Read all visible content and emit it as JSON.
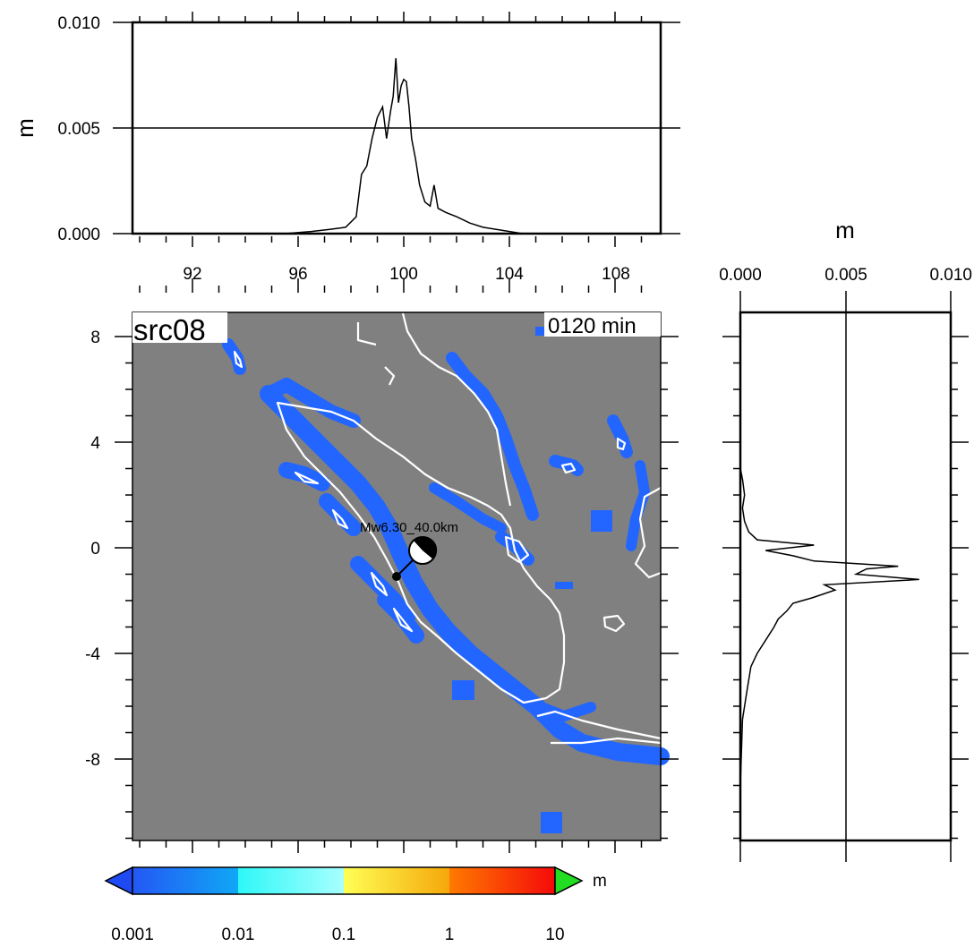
{
  "top_panel": {
    "ylabel": "m",
    "yticks": [
      "0.010",
      "0.005",
      "0.000"
    ],
    "xticks": [
      "92",
      "96",
      "100",
      "104",
      "108"
    ]
  },
  "side_panel": {
    "xlabel": "m",
    "xticks": [
      "0.000",
      "0.005",
      "0.010"
    ]
  },
  "map": {
    "source_label": "src08",
    "time_label": "0120 min",
    "event_label": "Mw6.30_40.0km",
    "yticks": [
      "8",
      "4",
      "0",
      "-4",
      "-8"
    ],
    "ocean_color": "#808080",
    "wave_color": "#2266ff",
    "coast_color": "#ffffff",
    "epicenter": {
      "lon": 99.6,
      "lat": -1.1
    },
    "beachball": {
      "lon": 100.7,
      "lat": -0.1
    }
  },
  "colorbar": {
    "unit": "m",
    "labels": [
      "0.001",
      "0.01",
      "0.1",
      "1",
      "10"
    ],
    "colors": {
      "under": "#1f49f2",
      "c1_start": "#2457f5",
      "c1_end": "#10a8f5",
      "c2_start": "#2ef7f7",
      "c2_end": "#a8ffff",
      "c3_start": "#ffff55",
      "c3_end": "#f5a80a",
      "c4_start": "#ff7a00",
      "c4_end": "#f50a0a",
      "over": "#22dd22"
    }
  },
  "chart_data": [
    {
      "type": "line",
      "title": "",
      "xlabel": "",
      "ylabel": "m",
      "xlim": [
        90,
        109.8
      ],
      "ylim": [
        0,
        0.01
      ],
      "grid": "horizontal line at 0.005",
      "x": [
        90,
        95.5,
        96.5,
        97.2,
        97.8,
        98.2,
        98.4,
        98.6,
        98.8,
        99.0,
        99.2,
        99.35,
        99.5,
        99.6,
        99.7,
        99.8,
        99.9,
        100.0,
        100.1,
        100.2,
        100.3,
        100.45,
        100.6,
        100.8,
        101.0,
        101.15,
        101.3,
        101.6,
        102.0,
        102.5,
        103.0,
        103.5,
        104.0,
        104.5,
        105.0,
        109.8
      ],
      "y": [
        0,
        0.0,
        0.0001,
        0.0002,
        0.0003,
        0.0008,
        0.0028,
        0.0032,
        0.0045,
        0.0055,
        0.006,
        0.0045,
        0.0058,
        0.0065,
        0.0083,
        0.0062,
        0.007,
        0.0073,
        0.0072,
        0.006,
        0.0045,
        0.0035,
        0.0023,
        0.0015,
        0.0013,
        0.0023,
        0.0012,
        0.001,
        0.0008,
        0.0005,
        0.0003,
        0.0002,
        0.0001,
        0.0,
        0.0,
        0
      ]
    },
    {
      "type": "line",
      "title": "",
      "xlabel": "m",
      "ylabel": "",
      "xlim": [
        0,
        0.01
      ],
      "ylim": [
        -11,
        9
      ],
      "grid": "vertical line at 0.005",
      "lat": [
        -9.0,
        -6.5,
        -5.5,
        -4.5,
        -4.0,
        -3.5,
        -3.0,
        -2.7,
        -2.4,
        -2.1,
        -1.9,
        -1.6,
        -1.4,
        -1.2,
        -1.0,
        -0.8,
        -0.7,
        -0.5,
        -0.3,
        -0.1,
        0.1,
        0.3,
        0.6,
        1.0,
        1.5,
        2.0,
        2.6,
        3.0,
        9.0
      ],
      "y": [
        0,
        0.0001,
        0.0003,
        0.0005,
        0.0008,
        0.0012,
        0.0016,
        0.0018,
        0.0022,
        0.0025,
        0.0034,
        0.0045,
        0.004,
        0.0085,
        0.0055,
        0.006,
        0.0075,
        0.0035,
        0.0025,
        0.0012,
        0.0035,
        0.0008,
        0.0004,
        0.0002,
        0.0001,
        0.0002,
        0.0001,
        0.0,
        0
      ]
    }
  ]
}
